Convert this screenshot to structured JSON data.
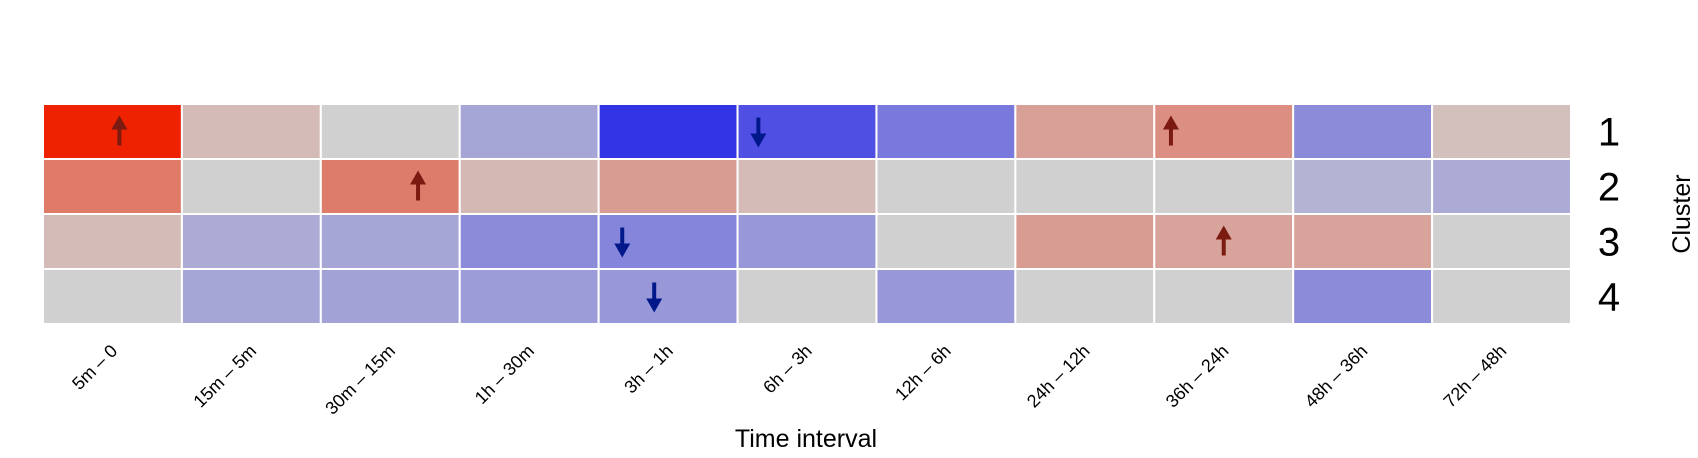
{
  "chart_data": {
    "type": "heatmap",
    "xlabel": "Time interval",
    "ylabel": "Cluster",
    "x_categories": [
      "5m – 0",
      "15m – 5m",
      "30m – 15m",
      "1h – 30m",
      "3h – 1h",
      "6h – 3h",
      "12h – 6h",
      "24h – 12h",
      "36h – 24h",
      "48h – 36h",
      "72h – 48h"
    ],
    "y_categories": [
      "1",
      "2",
      "3",
      "4"
    ],
    "color_scale": {
      "low": "#0000ee",
      "mid": "#d0d0d0",
      "high": "#ee2200",
      "range": [
        -1,
        1
      ]
    },
    "values": [
      [
        1.0,
        0.12,
        0.0,
        -0.2,
        -0.75,
        -0.62,
        -0.42,
        0.28,
        0.38,
        -0.33,
        0.1
      ],
      [
        0.5,
        0.0,
        0.48,
        0.14,
        0.3,
        0.12,
        0.0,
        0.0,
        0.0,
        -0.14,
        -0.18
      ],
      [
        0.12,
        -0.18,
        -0.2,
        -0.33,
        -0.36,
        -0.27,
        0.0,
        0.3,
        0.26,
        0.26,
        0.0
      ],
      [
        0.0,
        -0.2,
        -0.22,
        -0.25,
        -0.27,
        0.0,
        -0.27,
        0.0,
        0.0,
        -0.33,
        0.0
      ]
    ],
    "arrows": [
      {
        "row": 0,
        "col": 0,
        "direction": "up",
        "offset": 0.55,
        "color": "#7a1a10"
      },
      {
        "row": 0,
        "col": 5,
        "direction": "down",
        "offset": 0.15,
        "color": "#00188a"
      },
      {
        "row": 0,
        "col": 8,
        "direction": "up",
        "offset": 0.12,
        "color": "#7a1a10"
      },
      {
        "row": 1,
        "col": 2,
        "direction": "up",
        "offset": 0.7,
        "color": "#7a1a10"
      },
      {
        "row": 2,
        "col": 4,
        "direction": "down",
        "offset": 0.17,
        "color": "#00188a"
      },
      {
        "row": 2,
        "col": 8,
        "direction": "up",
        "offset": 0.5,
        "color": "#7a1a10"
      },
      {
        "row": 3,
        "col": 4,
        "direction": "down",
        "offset": 0.4,
        "color": "#00188a"
      }
    ],
    "grid": false,
    "legend": "none"
  }
}
